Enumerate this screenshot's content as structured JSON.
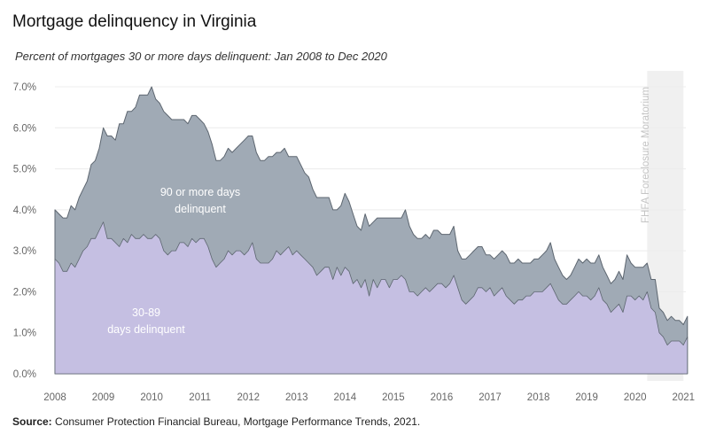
{
  "title": "Mortgage delinquency in Virginia",
  "subtitle": "Percent of mortgages 30 or more days delinquent: Jan 2008 to Dec 2020",
  "source": {
    "label": "Source:",
    "text": "Consumer Protection Financial Bureau, Mortgage Performance Trends, 2021."
  },
  "chart_data": {
    "type": "area",
    "stacked": true,
    "x_unit": "year",
    "x_start": 2008.0,
    "x_step": 0.08333,
    "xticks": [
      "2008",
      "2009",
      "2010",
      "2011",
      "2012",
      "2013",
      "2014",
      "2015",
      "2016",
      "2017",
      "2018",
      "2019",
      "2020",
      "2021"
    ],
    "yticks": [
      "0.0%",
      "1.0%",
      "2.0%",
      "3.0%",
      "4.0%",
      "5.0%",
      "6.0%",
      "7.0%"
    ],
    "ylim": [
      0,
      7.25
    ],
    "grid": true,
    "annotations": {
      "upper_series_label": "90 or more days delinquent",
      "lower_series_label": "30-89 days delinquent",
      "moratorium_label": "FHFA Foreclosure Moratorium",
      "moratorium_start": 2020.25,
      "moratorium_end": 2021.0
    },
    "colors": {
      "lower": "#c5bfe2",
      "upper": "#a0aab5",
      "edge": "#5d6670",
      "band": "#f0f0f0"
    },
    "series": [
      {
        "name": "30-89 days delinquent",
        "values": [
          2.8,
          2.7,
          2.5,
          2.5,
          2.7,
          2.6,
          2.8,
          3.0,
          3.1,
          3.3,
          3.3,
          3.5,
          3.7,
          3.3,
          3.3,
          3.2,
          3.1,
          3.3,
          3.2,
          3.4,
          3.3,
          3.3,
          3.4,
          3.3,
          3.3,
          3.4,
          3.3,
          3.0,
          2.9,
          3.0,
          3.0,
          3.2,
          3.2,
          3.1,
          3.3,
          3.2,
          3.3,
          3.3,
          3.1,
          2.8,
          2.6,
          2.7,
          2.8,
          3.0,
          2.9,
          3.0,
          3.0,
          2.9,
          3.0,
          3.2,
          2.8,
          2.7,
          2.7,
          2.7,
          2.8,
          3.0,
          2.9,
          3.0,
          3.1,
          2.9,
          3.0,
          2.9,
          2.8,
          2.7,
          2.6,
          2.4,
          2.5,
          2.6,
          2.6,
          2.3,
          2.6,
          2.4,
          2.6,
          2.5,
          2.2,
          2.3,
          2.1,
          2.3,
          1.9,
          2.3,
          2.1,
          2.3,
          2.3,
          2.1,
          2.3,
          2.3,
          2.4,
          2.3,
          2.0,
          2.0,
          1.9,
          2.0,
          2.1,
          2.0,
          2.1,
          2.2,
          2.2,
          2.1,
          2.2,
          2.4,
          2.1,
          1.8,
          1.7,
          1.8,
          1.9,
          2.1,
          2.1,
          2.0,
          2.1,
          1.9,
          2.0,
          2.1,
          1.9,
          1.8,
          1.7,
          1.8,
          1.8,
          1.9,
          1.9,
          2.0,
          2.0,
          2.0,
          2.1,
          2.2,
          2.0,
          1.8,
          1.7,
          1.7,
          1.8,
          1.9,
          2.0,
          1.9,
          1.9,
          1.8,
          1.9,
          2.1,
          1.8,
          1.7,
          1.5,
          1.6,
          1.7,
          1.5,
          1.9,
          1.9,
          1.8,
          1.9,
          1.8,
          2.0,
          1.6,
          1.5,
          1.0,
          0.9,
          0.7,
          0.8,
          0.8,
          0.8,
          0.7,
          0.9
        ]
      },
      {
        "name": "90 or more days delinquent",
        "values": [
          1.2,
          1.2,
          1.3,
          1.3,
          1.4,
          1.4,
          1.5,
          1.5,
          1.6,
          1.8,
          1.9,
          2.0,
          2.3,
          2.5,
          2.5,
          2.5,
          3.0,
          2.8,
          3.2,
          3.0,
          3.2,
          3.5,
          3.4,
          3.5,
          3.7,
          3.3,
          3.3,
          3.4,
          3.4,
          3.2,
          3.2,
          3.0,
          3.0,
          3.0,
          3.0,
          3.1,
          2.9,
          2.8,
          2.8,
          2.8,
          2.6,
          2.5,
          2.5,
          2.5,
          2.5,
          2.5,
          2.6,
          2.8,
          2.8,
          2.6,
          2.6,
          2.5,
          2.5,
          2.6,
          2.5,
          2.4,
          2.5,
          2.5,
          2.2,
          2.4,
          2.3,
          2.2,
          2.1,
          2.1,
          1.9,
          1.9,
          1.8,
          1.7,
          1.7,
          1.7,
          1.4,
          1.7,
          1.8,
          1.7,
          1.7,
          1.3,
          1.4,
          1.6,
          1.7,
          1.4,
          1.7,
          1.5,
          1.5,
          1.7,
          1.5,
          1.5,
          1.4,
          1.7,
          1.6,
          1.4,
          1.4,
          1.3,
          1.3,
          1.3,
          1.4,
          1.3,
          1.2,
          1.3,
          1.2,
          1.2,
          0.9,
          1.0,
          1.1,
          1.1,
          1.1,
          1.0,
          1.0,
          0.9,
          0.8,
          0.9,
          0.9,
          0.9,
          1.0,
          0.9,
          1.0,
          1.0,
          0.9,
          0.8,
          0.8,
          0.8,
          0.8,
          0.9,
          0.9,
          1.0,
          0.8,
          0.8,
          0.7,
          0.6,
          0.6,
          0.7,
          0.8,
          0.8,
          0.9,
          0.9,
          0.8,
          0.8,
          0.8,
          0.7,
          0.7,
          0.7,
          0.8,
          0.8,
          1.0,
          0.8,
          0.8,
          0.7,
          0.8,
          0.7,
          0.7,
          0.8,
          0.6,
          0.6,
          0.6,
          0.6,
          0.5,
          0.5,
          0.5,
          0.5
        ]
      }
    ]
  }
}
